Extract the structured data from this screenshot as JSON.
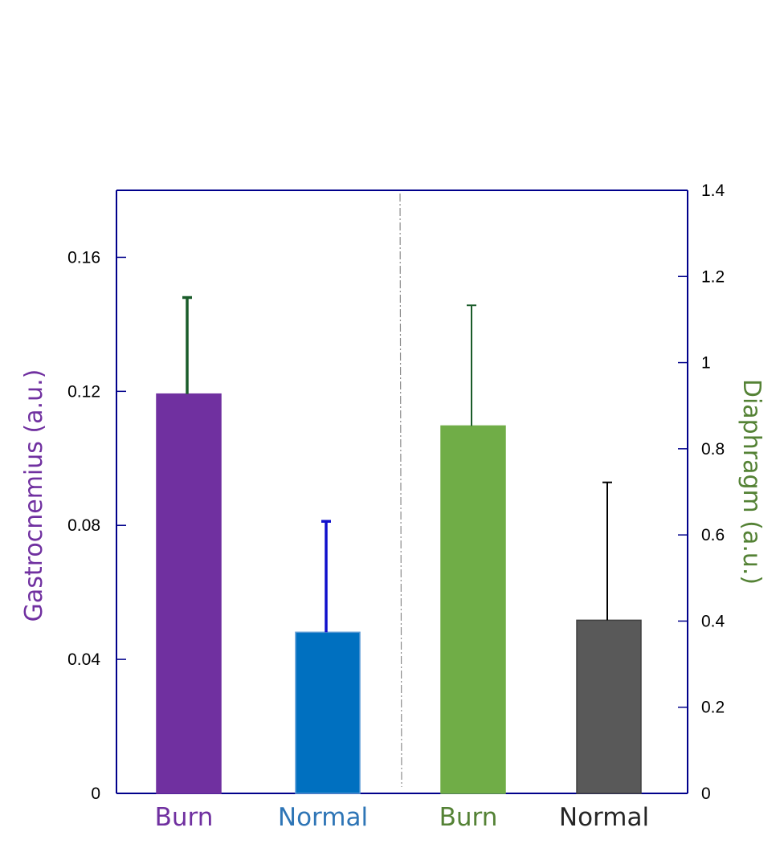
{
  "chart_data": {
    "type": "bar",
    "categories": [
      "Burn",
      "Normal",
      "Burn",
      "Normal"
    ],
    "left_axis": {
      "label": "Gastrocnemius (a.u.)",
      "label_color": "#7030a0",
      "ylim": [
        0,
        0.18
      ],
      "ticks": [
        0,
        0.04,
        0.08,
        0.12,
        0.16
      ],
      "tick_labels": [
        "0",
        "0.04",
        "0.08",
        "0.12",
        "0.16"
      ]
    },
    "right_axis": {
      "label": "Diaphragm (a.u.)",
      "label_color": "#548235",
      "ylim": [
        0,
        1.4
      ],
      "ticks": [
        0,
        0.2,
        0.4,
        0.6,
        0.8,
        1.0,
        1.2,
        1.4
      ],
      "tick_labels": [
        "0",
        "0.2",
        "0.4",
        "0.6",
        "0.8",
        "1",
        "1.2",
        "1.4"
      ]
    },
    "series": [
      {
        "name": "Gastrocnemius Burn",
        "axis": "left",
        "category_index": 0,
        "value": 0.1192,
        "error": 0.0288,
        "color": "#7030a0",
        "error_color": "#1a5c2a",
        "label_color": "#7030a0"
      },
      {
        "name": "Gastrocnemius Normal",
        "axis": "left",
        "category_index": 1,
        "value": 0.0481,
        "error": 0.0331,
        "color": "#0070c0",
        "error_color": "#1010cc",
        "label_color": "#2e75b6"
      },
      {
        "name": "Diaphragm Burn",
        "axis": "right",
        "category_index": 2,
        "value": 0.853,
        "error": 0.28,
        "color": "#70ad47",
        "error_color": "#1a5c2a",
        "label_color": "#548235"
      },
      {
        "name": "Diaphragm Normal",
        "axis": "right",
        "category_index": 3,
        "value": 0.402,
        "error": 0.32,
        "color": "#595959",
        "error_color": "#000000",
        "label_color": "#262626"
      }
    ],
    "divider": "dash-dot vertical line between left and right groups",
    "axis_color": "#00008b",
    "grid": false,
    "legend": "none"
  }
}
